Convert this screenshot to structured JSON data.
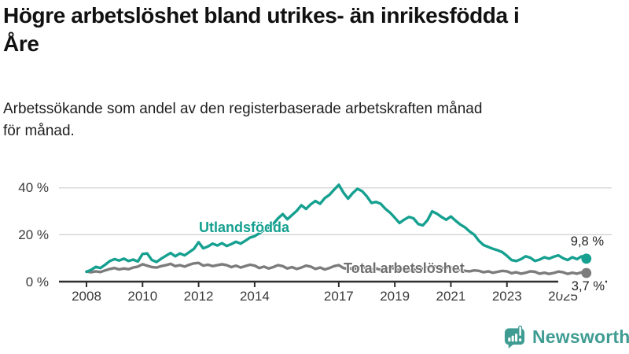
{
  "header": {
    "title_line1": "Högre arbetslöshet bland utrikes- än inrikesfödda i",
    "title_line2": "Åre",
    "subtitle_line1": "Arbetssökande som andel av den registerbaserade arbetskraften månad",
    "subtitle_line2": "för månad."
  },
  "branding": {
    "logo_text": "Newsworthy",
    "logo_icon": "bar-chart-speech-bubble-icon",
    "logo_color": "#3f9c93"
  },
  "colors": {
    "foreign_born_series": "#15a090",
    "total_series": "#7c7c7c",
    "grid": "#cfcfcf",
    "axis": "#2e2e2e",
    "tick_label": "#3a3a3a",
    "value_label": "#222222"
  },
  "chart_data": {
    "type": "line",
    "title": "Högre arbetslöshet bland utrikes- än inrikesfödda i Åre",
    "subtitle": "Arbetssökande som andel av den registerbaserade arbetskraften månad för månad.",
    "grid": "horizontal",
    "legend_position": "inline-annotations",
    "x_start": 2008,
    "x_step_years": 0.1666667,
    "x_end_approx": 2025.83,
    "ylim": [
      0,
      44
    ],
    "y_ticks": [
      {
        "value": 0,
        "label": "0 %"
      },
      {
        "value": 20,
        "label": "20 %"
      },
      {
        "value": 40,
        "label": "40 %"
      }
    ],
    "x_tick_years": [
      2008,
      2010,
      2012,
      2014,
      2017,
      2019,
      2021,
      2023,
      2025
    ],
    "x_tick_labels": [
      "2008",
      "2010",
      "2012",
      "2014",
      "2017",
      "2019",
      "2021",
      "2023",
      "2025"
    ],
    "series": [
      {
        "name": "Utlandsfödda",
        "color": "#15a090",
        "end_label": "9,8 %",
        "end_value": 9.8,
        "values": [
          4.2,
          5.0,
          6.3,
          5.8,
          7.2,
          8.8,
          9.6,
          9.0,
          9.8,
          8.8,
          9.4,
          8.6,
          11.8,
          12.0,
          9.2,
          8.4,
          9.8,
          11.0,
          12.2,
          10.8,
          12.0,
          11.2,
          12.6,
          14.0,
          16.8,
          14.2,
          15.0,
          16.2,
          15.4,
          16.4,
          15.2,
          16.0,
          17.0,
          16.2,
          17.4,
          18.8,
          19.4,
          20.6,
          22.0,
          23.2,
          24.6,
          27.0,
          28.8,
          26.6,
          28.4,
          30.2,
          32.6,
          31.0,
          33.0,
          34.4,
          33.2,
          35.6,
          37.0,
          39.2,
          41.3,
          38.0,
          35.4,
          37.8,
          39.6,
          38.6,
          36.4,
          33.6,
          34.0,
          33.2,
          31.0,
          29.4,
          27.2,
          25.0,
          26.4,
          27.6,
          27.0,
          24.6,
          24.0,
          26.2,
          30.0,
          29.0,
          27.6,
          26.4,
          27.8,
          26.0,
          24.4,
          23.2,
          21.4,
          20.0,
          17.4,
          15.6,
          14.8,
          14.0,
          13.4,
          12.6,
          11.0,
          9.2,
          8.8,
          9.6,
          10.8,
          10.2,
          8.8,
          9.4,
          10.4,
          9.8,
          10.6,
          11.2,
          10.0,
          9.2,
          10.4,
          9.6,
          10.8,
          9.8
        ]
      },
      {
        "name": "Total arbetslöshet",
        "color": "#7c7c7c",
        "end_label": "3,7 %",
        "end_value": 3.7,
        "values": [
          4.3,
          4.0,
          4.4,
          4.1,
          4.8,
          5.4,
          5.8,
          5.2,
          5.6,
          5.3,
          6.0,
          6.4,
          7.4,
          6.8,
          6.2,
          6.0,
          6.6,
          7.0,
          7.6,
          6.6,
          7.0,
          6.4,
          7.2,
          7.8,
          8.0,
          6.8,
          7.2,
          6.6,
          7.0,
          7.4,
          7.0,
          6.2,
          6.8,
          6.0,
          6.6,
          7.2,
          6.8,
          5.8,
          6.4,
          5.6,
          6.2,
          7.0,
          6.6,
          5.6,
          6.2,
          5.4,
          6.0,
          6.8,
          6.4,
          5.4,
          6.0,
          5.2,
          5.8,
          6.6,
          7.0,
          5.8,
          5.4,
          5.8,
          5.4,
          6.2,
          6.0,
          5.2,
          5.6,
          5.0,
          5.4,
          6.0,
          5.6,
          4.8,
          5.2,
          4.6,
          5.0,
          5.6,
          5.4,
          6.0,
          6.6,
          6.2,
          5.8,
          6.2,
          6.0,
          5.4,
          5.0,
          4.6,
          4.4,
          4.8,
          4.6,
          4.0,
          4.4,
          3.8,
          4.2,
          4.6,
          4.4,
          3.6,
          4.0,
          3.4,
          3.8,
          4.4,
          4.2,
          3.4,
          3.8,
          3.3,
          3.7,
          4.3,
          4.0,
          3.3,
          3.8,
          3.4,
          4.0,
          3.7
        ]
      }
    ]
  }
}
